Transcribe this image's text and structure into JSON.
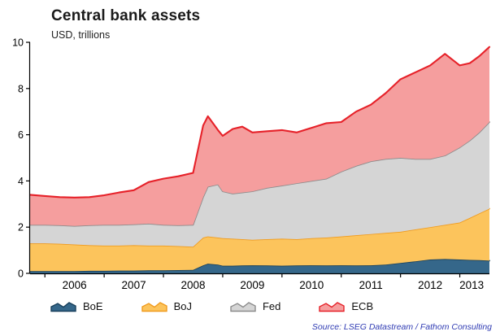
{
  "header": {
    "title": "Central bank assets",
    "subtitle": "USD, trillions"
  },
  "source": "Source: LSEG Datastream / Fathom Consulting",
  "chart_data": {
    "type": "area",
    "stacked": true,
    "title": "Central bank assets",
    "ylabel": "USD, trillions",
    "xlabel": "",
    "legend_position": "bottom",
    "grid": false,
    "xlim": [
      2005.75,
      2013.5
    ],
    "ylim": [
      0,
      10
    ],
    "yticks": [
      0,
      2,
      4,
      6,
      8,
      10
    ],
    "xticks": [
      2006,
      2007,
      2008,
      2009,
      2010,
      2011,
      2012,
      2013
    ],
    "xtick_labels": [
      {
        "pos": 2006.5,
        "text": "2006"
      },
      {
        "pos": 2007.5,
        "text": "2007"
      },
      {
        "pos": 2008.5,
        "text": "2008"
      },
      {
        "pos": 2009.5,
        "text": "2009"
      },
      {
        "pos": 2010.5,
        "text": "2010"
      },
      {
        "pos": 2011.5,
        "text": "2011"
      },
      {
        "pos": 2012.5,
        "text": "2012"
      },
      {
        "pos": 2013.2,
        "text": "2013"
      }
    ],
    "x": [
      2005.75,
      2006.0,
      2006.25,
      2006.5,
      2006.75,
      2007.0,
      2007.25,
      2007.5,
      2007.75,
      2008.0,
      2008.25,
      2008.5,
      2008.67,
      2008.75,
      2008.92,
      2009.0,
      2009.17,
      2009.33,
      2009.5,
      2009.75,
      2010.0,
      2010.25,
      2010.5,
      2010.75,
      2011.0,
      2011.25,
      2011.5,
      2011.75,
      2012.0,
      2012.25,
      2012.5,
      2012.75,
      2013.0,
      2013.17,
      2013.33,
      2013.5
    ],
    "series": [
      {
        "name": "BoE",
        "fill": "#35678a",
        "stroke": "#173f5b",
        "values": [
          0.1,
          0.1,
          0.1,
          0.1,
          0.11,
          0.11,
          0.12,
          0.12,
          0.13,
          0.13,
          0.14,
          0.15,
          0.35,
          0.42,
          0.38,
          0.33,
          0.33,
          0.34,
          0.35,
          0.34,
          0.33,
          0.34,
          0.35,
          0.34,
          0.35,
          0.34,
          0.35,
          0.38,
          0.45,
          0.52,
          0.6,
          0.62,
          0.6,
          0.58,
          0.57,
          0.55
        ]
      },
      {
        "name": "BoJ",
        "fill": "#fcc45c",
        "stroke": "#f09b1e",
        "values": [
          1.2,
          1.2,
          1.18,
          1.15,
          1.11,
          1.09,
          1.08,
          1.1,
          1.07,
          1.07,
          1.04,
          1.0,
          1.2,
          1.18,
          1.17,
          1.19,
          1.17,
          1.14,
          1.1,
          1.14,
          1.17,
          1.14,
          1.17,
          1.21,
          1.25,
          1.31,
          1.35,
          1.37,
          1.35,
          1.38,
          1.4,
          1.48,
          1.6,
          1.82,
          2.03,
          2.25
        ]
      },
      {
        "name": "Fed",
        "fill": "#d5d5d5",
        "stroke": "#8c8c8c",
        "values": [
          0.8,
          0.8,
          0.8,
          0.8,
          0.86,
          0.9,
          0.9,
          0.9,
          0.95,
          0.9,
          0.9,
          0.95,
          1.75,
          2.15,
          2.3,
          2.03,
          1.95,
          2.02,
          2.1,
          2.22,
          2.3,
          2.42,
          2.48,
          2.55,
          2.8,
          3.0,
          3.15,
          3.2,
          3.2,
          3.05,
          2.95,
          3.0,
          3.25,
          3.35,
          3.5,
          3.75
        ]
      },
      {
        "name": "ECB",
        "fill": "#f59e9e",
        "stroke": "#e62129",
        "values": [
          1.3,
          1.25,
          1.22,
          1.23,
          1.22,
          1.28,
          1.4,
          1.48,
          1.8,
          2.0,
          2.12,
          2.25,
          3.1,
          3.05,
          2.35,
          2.4,
          2.8,
          2.85,
          2.55,
          2.45,
          2.4,
          2.2,
          2.3,
          2.4,
          2.15,
          2.35,
          2.45,
          2.85,
          3.4,
          3.75,
          4.05,
          4.4,
          3.55,
          3.35,
          3.3,
          3.25
        ]
      }
    ]
  }
}
